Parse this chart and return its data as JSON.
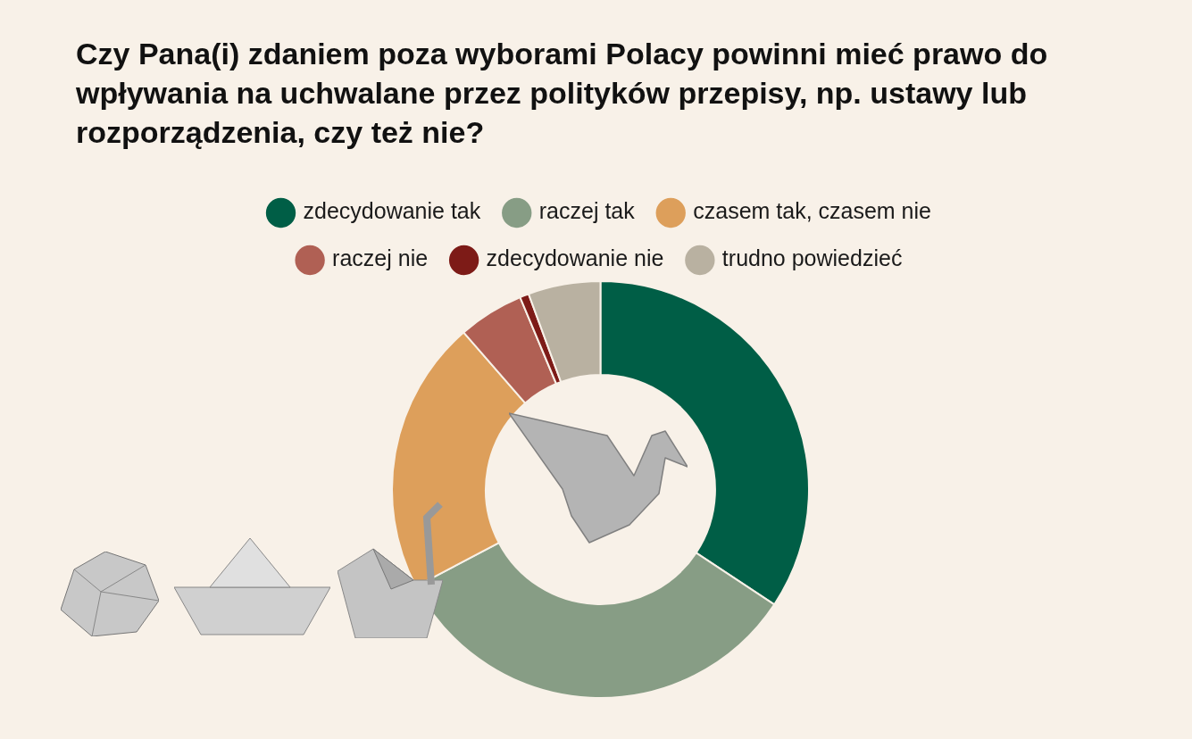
{
  "chart_data": {
    "type": "donut",
    "title": "Czy Pana(i) zdaniem poza wyborami Polacy powinni mieć prawo do wpływania na uchwalane przez polityków przepisy, np. ustawy lub rozporządzenia, czy też nie?",
    "categories": [
      "zdecydowanie tak",
      "raczej tak",
      "czasem tak, czasem nie",
      "raczej nie",
      "zdecydowanie nie",
      "trudno powiedzieć"
    ],
    "values": [
      34.3,
      33,
      21.3,
      5.1,
      0.7,
      5.6
    ],
    "colors": [
      "#005e46",
      "#879d85",
      "#dd9f5b",
      "#b06054",
      "#7d1b17",
      "#b9b1a1"
    ],
    "legend": "top",
    "marker": "circle"
  }
}
